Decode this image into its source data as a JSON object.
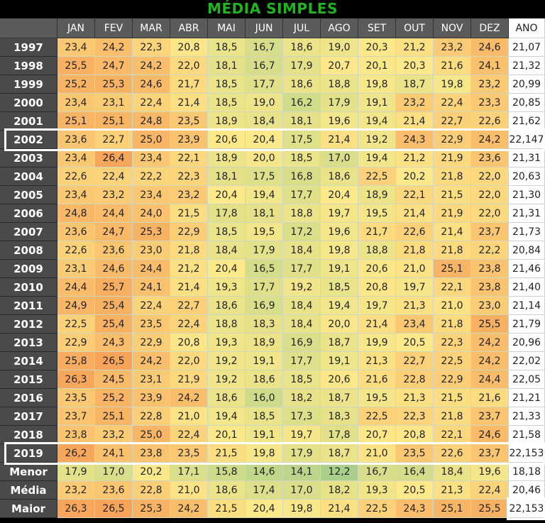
{
  "title": "MÉDIA SIMPLES",
  "months": [
    "JAN",
    "FEV",
    "MAR",
    "ABR",
    "MAI",
    "JUN",
    "JUL",
    "AGO",
    "SET",
    "OUT",
    "NOV",
    "DEZ"
  ],
  "ano_header": "ANO",
  "rows": [
    {
      "label": "1997",
      "values": [
        "23,4",
        "24,2",
        "22,3",
        "20,8",
        "18,5",
        "16,7",
        "18,6",
        "19,0",
        "20,3",
        "21,2",
        "23,2",
        "24,6"
      ],
      "ano": "21,07"
    },
    {
      "label": "1998",
      "values": [
        "25,5",
        "24,7",
        "24,2",
        "22,0",
        "18,1",
        "16,7",
        "17,9",
        "20,7",
        "20,1",
        "20,3",
        "21,6",
        "24,1"
      ],
      "ano": "21,32"
    },
    {
      "label": "1999",
      "values": [
        "25,2",
        "25,3",
        "24,6",
        "21,7",
        "18,5",
        "17,7",
        "18,6",
        "18,8",
        "19,8",
        "18,7",
        "19,8",
        "23,2"
      ],
      "ano": "20,99"
    },
    {
      "label": "2000",
      "values": [
        "23,4",
        "23,1",
        "22,4",
        "21,4",
        "18,5",
        "19,0",
        "16,2",
        "17,9",
        "19,1",
        "23,2",
        "22,4",
        "23,3"
      ],
      "ano": "20,85"
    },
    {
      "label": "2001",
      "values": [
        "25,1",
        "25,1",
        "24,8",
        "23,5",
        "18,9",
        "18,4",
        "18,1",
        "19,6",
        "19,4",
        "21,4",
        "22,7",
        "22,6"
      ],
      "ano": "21,62"
    },
    {
      "label": "2002",
      "values": [
        "23,6",
        "22,7",
        "25,0",
        "23,9",
        "20,6",
        "20,4",
        "17,5",
        "21,4",
        "19,2",
        "24,3",
        "22,9",
        "24,2"
      ],
      "ano": "22,147"
    },
    {
      "label": "2003",
      "values": [
        "23,4",
        "26,4",
        "23,4",
        "22,1",
        "18,9",
        "20,0",
        "18,5",
        "17,0",
        "19,4",
        "21,2",
        "21,9",
        "23,6"
      ],
      "ano": "21,31"
    },
    {
      "label": "2004",
      "values": [
        "22,6",
        "22,4",
        "22,2",
        "22,3",
        "18,1",
        "17,5",
        "16,8",
        "18,6",
        "22,5",
        "20,2",
        "21,8",
        "22,0"
      ],
      "ano": "20,63"
    },
    {
      "label": "2005",
      "values": [
        "23,4",
        "23,2",
        "23,4",
        "23,2",
        "20,4",
        "19,4",
        "17,7",
        "20,4",
        "18,9",
        "22,1",
        "21,5",
        "22,0"
      ],
      "ano": "21,30"
    },
    {
      "label": "2006",
      "values": [
        "24,8",
        "24,4",
        "24,0",
        "21,5",
        "17,8",
        "18,1",
        "18,8",
        "19,7",
        "19,5",
        "21,4",
        "21,9",
        "22,0"
      ],
      "ano": "21,31"
    },
    {
      "label": "2007",
      "values": [
        "23,6",
        "24,7",
        "25,3",
        "22,9",
        "18,5",
        "19,5",
        "17,2",
        "19,6",
        "21,7",
        "22,6",
        "21,4",
        "23,7"
      ],
      "ano": "21,73"
    },
    {
      "label": "2008",
      "values": [
        "22,6",
        "23,6",
        "23,0",
        "21,8",
        "18,4",
        "17,9",
        "18,4",
        "19,8",
        "18,8",
        "21,8",
        "21,8",
        "22,2"
      ],
      "ano": "20,84"
    },
    {
      "label": "2009",
      "values": [
        "23,1",
        "24,6",
        "24,4",
        "21,2",
        "20,4",
        "16,5",
        "17,7",
        "19,1",
        "20,6",
        "21,0",
        "25,1",
        "23,8"
      ],
      "ano": "21,46"
    },
    {
      "label": "2010",
      "values": [
        "24,4",
        "25,7",
        "24,1",
        "21,4",
        "19,3",
        "17,7",
        "19,2",
        "18,5",
        "20,8",
        "19,7",
        "22,1",
        "23,8"
      ],
      "ano": "21,40"
    },
    {
      "label": "2011",
      "values": [
        "24,9",
        "25,4",
        "22,4",
        "22,7",
        "18,6",
        "16,9",
        "18,4",
        "19,4",
        "19,7",
        "21,3",
        "21,0",
        "23,0"
      ],
      "ano": "21,14"
    },
    {
      "label": "2012",
      "values": [
        "22,5",
        "25,4",
        "23,5",
        "22,4",
        "18,8",
        "18,3",
        "18,4",
        "20,0",
        "21,4",
        "23,4",
        "21,8",
        "25,5"
      ],
      "ano": "21,79"
    },
    {
      "label": "2013",
      "values": [
        "22,9",
        "24,3",
        "22,9",
        "20,8",
        "19,3",
        "18,9",
        "16,9",
        "18,7",
        "19,9",
        "20,5",
        "22,3",
        "24,2"
      ],
      "ano": "20,96"
    },
    {
      "label": "2014",
      "values": [
        "25,8",
        "26,5",
        "24,2",
        "22,0",
        "19,2",
        "19,1",
        "17,7",
        "19,1",
        "21,3",
        "22,7",
        "22,5",
        "24,2"
      ],
      "ano": "22,02"
    },
    {
      "label": "2015",
      "values": [
        "26,3",
        "24,5",
        "23,1",
        "21,9",
        "19,2",
        "18,6",
        "18,5",
        "20,6",
        "21,6",
        "22,8",
        "22,9",
        "24,4"
      ],
      "ano": "22,05"
    },
    {
      "label": "2016",
      "values": [
        "23,5",
        "25,2",
        "23,9",
        "24,2",
        "18,6",
        "16,0",
        "18,2",
        "18,7",
        "19,5",
        "21,3",
        "21,5",
        "21,6"
      ],
      "ano": "21,21"
    },
    {
      "label": "2017",
      "values": [
        "23,7",
        "25,1",
        "22,8",
        "21,0",
        "19,4",
        "18,5",
        "17,3",
        "18,3",
        "22,5",
        "22,3",
        "21,8",
        "23,7"
      ],
      "ano": "21,33"
    },
    {
      "label": "2018",
      "values": [
        "23,8",
        "23,2",
        "25,0",
        "22,4",
        "20,1",
        "19,1",
        "19,7",
        "17,8",
        "20,7",
        "20,8",
        "22,1",
        "24,6"
      ],
      "ano": "21,58"
    },
    {
      "label": "2019",
      "values": [
        "26,2",
        "24,1",
        "23,8",
        "23,5",
        "21,5",
        "19,8",
        "17,9",
        "18,7",
        "21,0",
        "23,5",
        "22,6",
        "23,7"
      ],
      "ano": "22,153"
    },
    {
      "label": "Menor",
      "values": [
        "17,9",
        "17,0",
        "20,2",
        "17,1",
        "15,8",
        "14,6",
        "14,1",
        "12,2",
        "16,7",
        "16,4",
        "18,4",
        "19,6"
      ],
      "ano": "18,18"
    },
    {
      "label": "Média",
      "values": [
        "23,2",
        "23,6",
        "22,8",
        "21,0",
        "18,6",
        "17,4",
        "17,0",
        "18,2",
        "19,3",
        "20,5",
        "21,3",
        "22,4"
      ],
      "ano": "20,46"
    },
    {
      "label": "Maior",
      "values": [
        "26,3",
        "26,5",
        "25,3",
        "24,2",
        "21,5",
        "20,4",
        "19,8",
        "21,4",
        "22,5",
        "24,3",
        "25,1",
        "25,5"
      ],
      "ano": "22,153"
    }
  ],
  "highlighted_rows": [
    "2002",
    "2019"
  ],
  "colors": {
    "title": "#1fb51f",
    "header_bg": "#5b5b5b",
    "label_bg": "#4a4a4a",
    "scale_low": "#a9cf8a",
    "scale_mid": "#fde98a",
    "scale_high": "#f7a45a"
  }
}
